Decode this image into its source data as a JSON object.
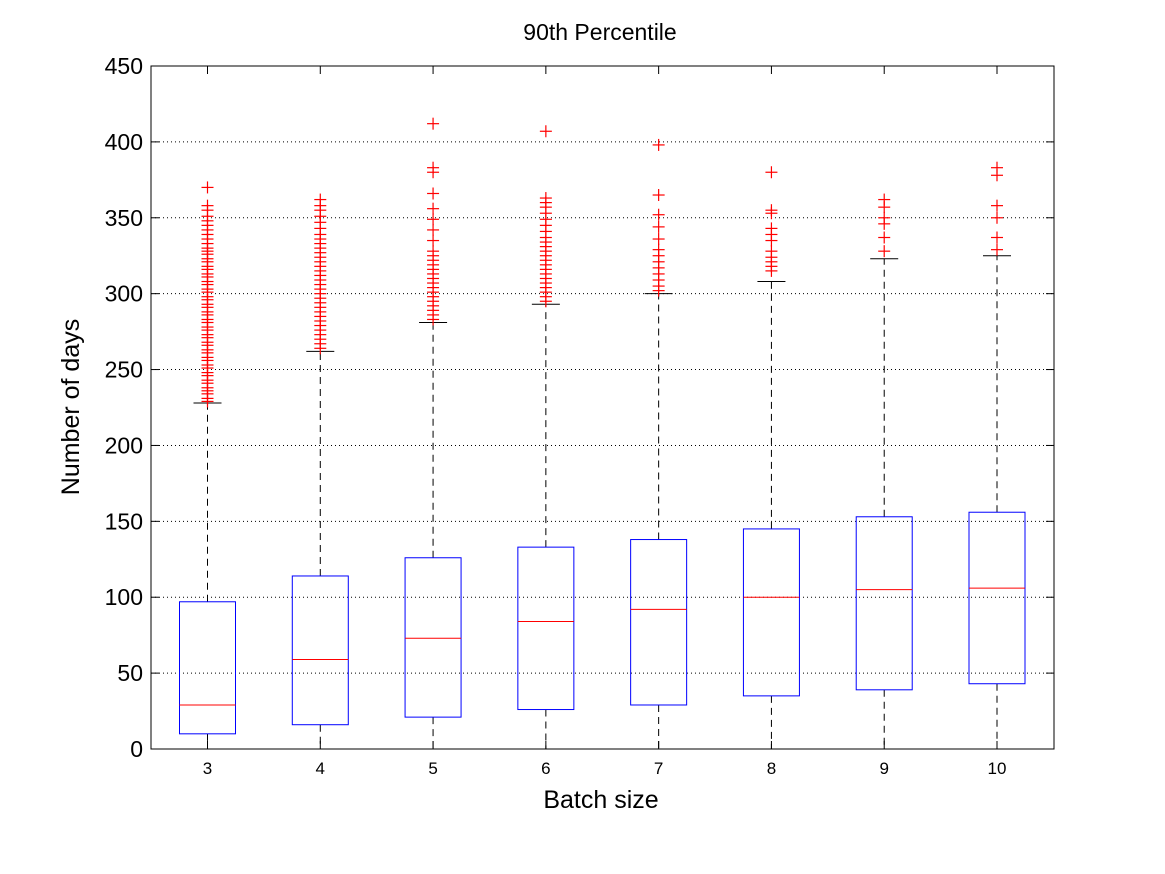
{
  "chart_data": {
    "type": "box",
    "title": "90th Percentile",
    "xlabel": "Batch size",
    "ylabel": "Number of days",
    "ylim": [
      0,
      450
    ],
    "yticks": [
      0,
      50,
      100,
      150,
      200,
      250,
      300,
      350,
      400,
      450
    ],
    "ytick_labels": [
      "0",
      "50",
      "100",
      "150",
      "200",
      "250",
      "300",
      "350",
      "400",
      "450"
    ],
    "grid": "horizontal dotted",
    "colors": {
      "box": "#0000ff",
      "median": "#ff0000",
      "outlier": "#ff0000",
      "whisker": "#000000"
    },
    "categories": [
      "3",
      "4",
      "5",
      "6",
      "7",
      "8",
      "9",
      "10"
    ],
    "boxes": [
      {
        "label": "3",
        "whisker_low": 0,
        "q1": 10,
        "median": 29,
        "q3": 97,
        "whisker_high": 228,
        "outliers": [
          229,
          231,
          234,
          236,
          238,
          241,
          243,
          246,
          248,
          251,
          253,
          256,
          258,
          261,
          263,
          266,
          268,
          271,
          273,
          276,
          278,
          281,
          283,
          286,
          288,
          291,
          293,
          296,
          298,
          301,
          303,
          306,
          308,
          311,
          313,
          316,
          318,
          321,
          323,
          326,
          328,
          330,
          333,
          336,
          339,
          342,
          345,
          348,
          351,
          355,
          358,
          370
        ]
      },
      {
        "label": "4",
        "whisker_low": 0,
        "q1": 16,
        "median": 59,
        "q3": 114,
        "whisker_high": 262,
        "outliers": [
          264,
          267,
          270,
          273,
          276,
          279,
          282,
          285,
          288,
          291,
          294,
          297,
          300,
          303,
          306,
          309,
          312,
          315,
          318,
          321,
          324,
          327,
          330,
          333,
          336,
          339,
          343,
          347,
          351,
          355,
          358,
          362
        ]
      },
      {
        "label": "5",
        "whisker_low": 0,
        "q1": 21,
        "median": 73,
        "q3": 126,
        "whisker_high": 281,
        "outliers": [
          283,
          286,
          289,
          292,
          295,
          298,
          301,
          304,
          307,
          310,
          313,
          316,
          319,
          322,
          325,
          328,
          335,
          342,
          349,
          356,
          366,
          380,
          383,
          412
        ]
      },
      {
        "label": "6",
        "whisker_low": 0,
        "q1": 26,
        "median": 84,
        "q3": 133,
        "whisker_high": 293,
        "outliers": [
          295,
          298,
          301,
          304,
          307,
          310,
          313,
          316,
          319,
          322,
          325,
          328,
          331,
          334,
          337,
          341,
          345,
          349,
          353,
          357,
          360,
          363,
          407
        ]
      },
      {
        "label": "7",
        "whisker_low": 0,
        "q1": 29,
        "median": 92,
        "q3": 138,
        "whisker_high": 300,
        "outliers": [
          302,
          305,
          309,
          313,
          317,
          321,
          325,
          329,
          336,
          344,
          352,
          365,
          398
        ]
      },
      {
        "label": "8",
        "whisker_low": 0,
        "q1": 35,
        "median": 100,
        "q3": 145,
        "whisker_high": 308,
        "outliers": [
          315,
          318,
          321,
          324,
          328,
          335,
          339,
          343,
          353,
          355,
          380
        ]
      },
      {
        "label": "9",
        "whisker_low": 0,
        "q1": 39,
        "median": 105,
        "q3": 153,
        "whisker_high": 323,
        "outliers": [
          328,
          337,
          346,
          350,
          357,
          362
        ]
      },
      {
        "label": "10",
        "whisker_low": 0,
        "q1": 43,
        "median": 106,
        "q3": 156,
        "whisker_high": 325,
        "outliers": [
          329,
          337,
          350,
          358,
          378,
          383
        ]
      }
    ]
  }
}
